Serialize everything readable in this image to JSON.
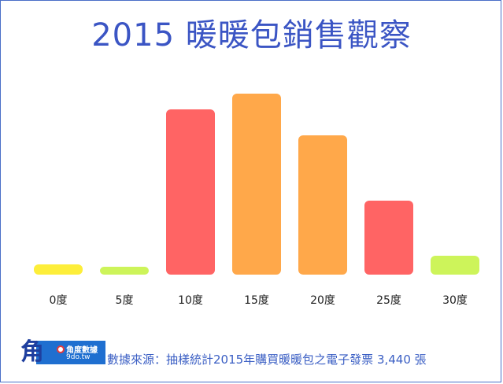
{
  "title": "2015 暖暖包銷售觀察",
  "source": "數據來源：抽樣統計2015年購買暖暖包之電子發票 3,440 張",
  "logo": {
    "mark": "角",
    "name": "角度數據",
    "url": "9do.tw"
  },
  "chart_data": {
    "type": "bar",
    "categories": [
      "0度",
      "5度",
      "10度",
      "15度",
      "20度",
      "25度",
      "30度"
    ],
    "values": [
      13,
      10,
      210,
      230,
      177,
      94,
      24
    ],
    "colors": [
      "#fdee3a",
      "#cdf45a",
      "#ff6464",
      "#ffa84a",
      "#ffa84a",
      "#ff6464",
      "#cdf45a"
    ],
    "title": "2015 暖暖包銷售觀察",
    "xlabel": "",
    "ylabel": "",
    "ylim": [
      0,
      230
    ],
    "grid": false,
    "legend": "none"
  }
}
